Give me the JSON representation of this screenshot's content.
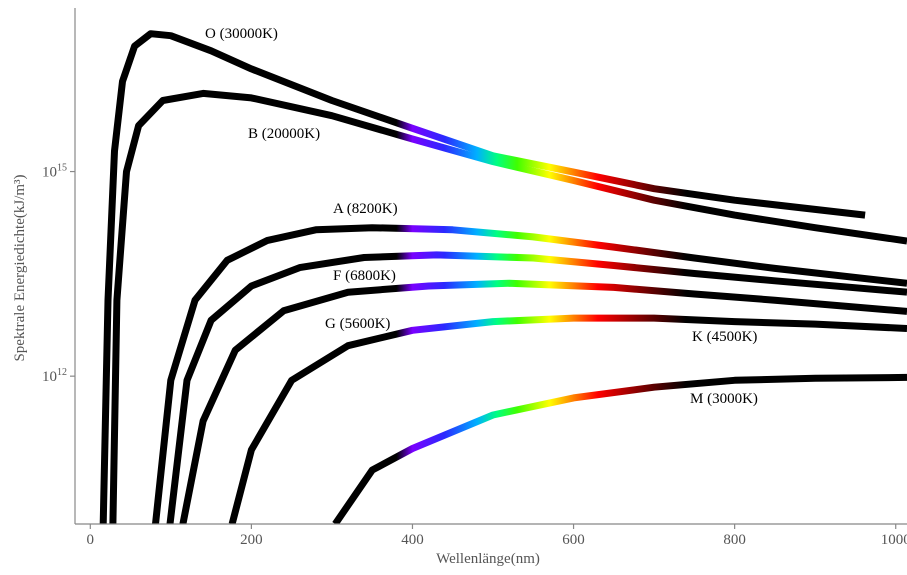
{
  "chart_data": {
    "type": "line",
    "xlabel": "Wellenlänge(nm)",
    "ylabel": "Spektrale Energiedichte(kJ/m³)",
    "xlim": [
      -19,
      1014
    ],
    "xticks": [
      0,
      200,
      400,
      600,
      800,
      1000
    ],
    "ylim": [
      6800000000.0,
      2.5e+17
    ],
    "yscale": "log",
    "yticks": [
      {
        "value": 1000000000000.0,
        "label": "10^12"
      },
      {
        "value": 1000000000000000.0,
        "label": "10^15"
      }
    ],
    "series": [
      {
        "name": "O (30000K)",
        "color": "spectrum",
        "x": [
          16,
          22,
          30,
          40,
          55,
          75,
          100,
          150,
          200,
          300,
          400,
          500,
          600,
          700,
          800,
          962
        ],
        "values": [
          6800000000.0,
          13000000000000.0,
          2000000000000000.0,
          2.1e+16,
          6.9e+16,
          1.05e+17,
          9.8e+16,
          5.9e+16,
          3.2e+16,
          1.1e+16,
          4300000000000000.0,
          1700000000000000.0,
          980000000000000.0,
          560000000000000.0,
          380000000000000.0,
          230000000000000.0
        ]
      },
      {
        "name": "B (20000K)",
        "color": "spectrum",
        "x": [
          28,
          33,
          45,
          60,
          90,
          140,
          200,
          300,
          400,
          500,
          600,
          700,
          800,
          900,
          1014
        ],
        "values": [
          6800000000.0,
          13000000000000.0,
          1000000000000000.0,
          4700000000000000.0,
          1.1e+16,
          1.4e+16,
          1.2e+16,
          6600000000000000.0,
          3000000000000000.0,
          1400000000000000.0,
          740000000000000.0,
          380000000000000.0,
          230000000000000.0,
          150000000000000.0,
          96000000000000.0
        ]
      },
      {
        "name": "A (8200K)",
        "color": "spectrum",
        "x": [
          81,
          100,
          130,
          170,
          220,
          280,
          350,
          450,
          550,
          650,
          750,
          850,
          1014
        ],
        "values": [
          6800000000.0,
          870000000000.0,
          13000000000000.0,
          50000000000000.0,
          98000000000000.0,
          140000000000000.0,
          150000000000000.0,
          140000000000000.0,
          110000000000000.0,
          78000000000000.0,
          54000000000000.0,
          38000000000000.0,
          23000000000000.0
        ]
      },
      {
        "name": "F (6800K)",
        "color": "spectrum",
        "x": [
          99,
          120,
          150,
          200,
          260,
          340,
          430,
          550,
          650,
          750,
          850,
          1014
        ],
        "values": [
          6800000000.0,
          870000000000.0,
          6600000000000.0,
          21000000000000.0,
          39000000000000.0,
          55000000000000.0,
          60000000000000.0,
          54000000000000.0,
          42000000000000.0,
          32000000000000.0,
          25000000000000.0,
          17000000000000.0
        ]
      },
      {
        "name": "G (5600K)",
        "color": "spectrum",
        "x": [
          115,
          140,
          180,
          240,
          320,
          420,
          520,
          650,
          750,
          850,
          1014
        ],
        "values": [
          6800000000.0,
          220000000000.0,
          2400000000000.0,
          9100000000000.0,
          17000000000000.0,
          21000000000000.0,
          23000000000000.0,
          20000000000000.0,
          16000000000000.0,
          13000000000000.0,
          8900000000000.0
        ]
      },
      {
        "name": "K (4500K)",
        "color": "spectrum",
        "x": [
          176,
          200,
          250,
          320,
          400,
          500,
          600,
          700,
          800,
          900,
          1014
        ],
        "values": [
          6800000000.0,
          83000000000.0,
          870000000000.0,
          2800000000000.0,
          4700000000000.0,
          6300000000000.0,
          7100000000000.0,
          7100000000000.0,
          6300000000000.0,
          5800000000000.0,
          5000000000000.0
        ]
      },
      {
        "name": "M (3000K)",
        "color": "spectrum",
        "x": [
          304,
          350,
          400,
          500,
          600,
          700,
          800,
          900,
          1014
        ],
        "values": [
          6800000000.0,
          42000000000.0,
          87000000000.0,
          270000000000.0,
          480000000000.0,
          690000000000.0,
          870000000000.0,
          930000000000.0,
          960000000000.0
        ]
      }
    ]
  }
}
